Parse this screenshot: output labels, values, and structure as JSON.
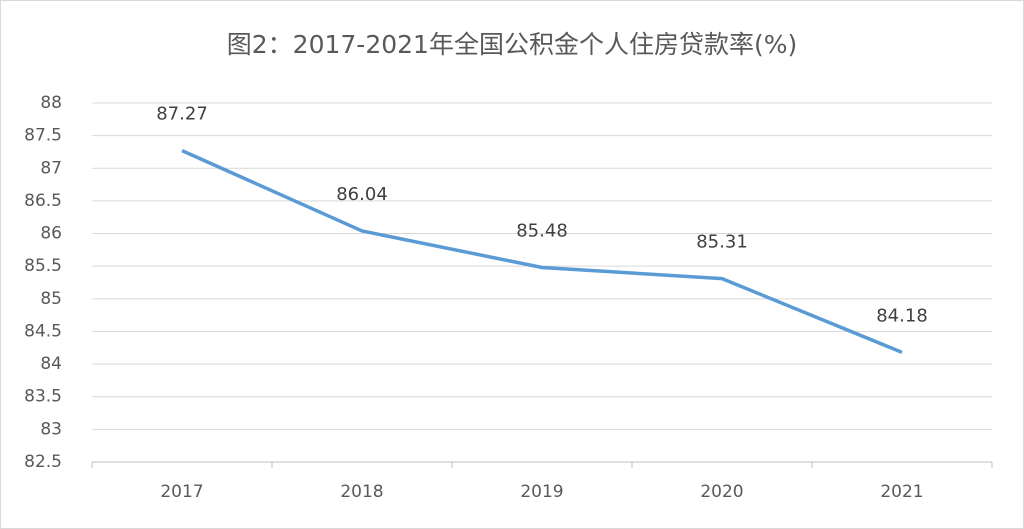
{
  "chart_data": {
    "type": "line",
    "title": "图2：2017-2021年全国公积金个人住房贷款率(%)",
    "categories": [
      "2017",
      "2018",
      "2019",
      "2020",
      "2021"
    ],
    "values": [
      87.27,
      86.04,
      85.48,
      85.31,
      84.18
    ],
    "color": "#5b9bd5",
    "ylim": [
      82.5,
      88
    ],
    "yticks": [
      82.5,
      83,
      83.5,
      84,
      84.5,
      85,
      85.5,
      86,
      86.5,
      87,
      87.5,
      88
    ],
    "grid": true,
    "data_labels": true
  }
}
